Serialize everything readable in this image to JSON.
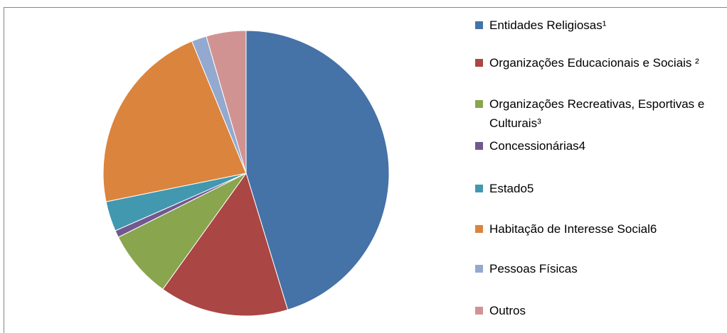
{
  "chart_data": {
    "type": "pie",
    "categories": [
      "Entidades Religiosas¹",
      "Organizações Educacionais e Sociais ²",
      "Organizações Recreativas, Esportivas e Culturais³",
      "Concessionárias4",
      "Estado5",
      "Habitação de Interesse Social6",
      "Pessoas Físicas",
      "Outros"
    ],
    "values": [
      45.3,
      14.6,
      7.7,
      0.8,
      3.4,
      22,
      1.7,
      4.5
    ],
    "colors": [
      "#4572a7",
      "#aa4643",
      "#89a54e",
      "#71588f",
      "#4198af",
      "#db843d",
      "#93a9cf",
      "#d19392"
    ],
    "legend": "right"
  }
}
